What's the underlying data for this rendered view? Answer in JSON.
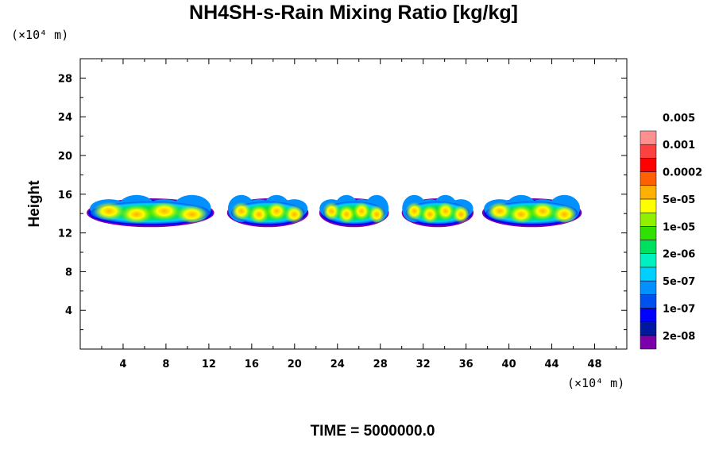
{
  "chart_data": {
    "type": "heatmap",
    "title": "NH4SH-s-Rain Mixing Ratio [kg/kg]",
    "ylabel": "Height",
    "y_unit": "(×10⁴ m)",
    "x_unit": "(×10⁴ m)",
    "time_label": "TIME = 5000000.0",
    "xlim": [
      0,
      51
    ],
    "ylim": [
      0,
      30
    ],
    "x_ticks": [
      4,
      8,
      12,
      16,
      20,
      24,
      28,
      32,
      36,
      40,
      44,
      48
    ],
    "y_ticks": [
      4,
      8,
      12,
      16,
      20,
      24,
      28
    ],
    "grid": false,
    "legend_placement": "right",
    "colorbar": {
      "colors": [
        "#7a00aa",
        "#0018a0",
        "#0000ff",
        "#0050f0",
        "#0090ff",
        "#00d0ff",
        "#00f0c0",
        "#00e060",
        "#30e000",
        "#90f000",
        "#ffff00",
        "#ffb000",
        "#ff6000",
        "#ff0000",
        "#ff4040",
        "#ff9090"
      ],
      "labels": [
        "2e-08",
        "1e-07",
        "5e-07",
        "2e-06",
        "1e-05",
        "5e-05",
        "0.0002",
        "0.001",
        "0.005"
      ]
    },
    "cloud_band": {
      "height_range": [
        12.5,
        16
      ],
      "segments": [
        {
          "x_range": [
            0.6,
            12.5
          ]
        },
        {
          "x_range": [
            13.7,
            21.3
          ]
        },
        {
          "x_range": [
            22.3,
            28.8
          ]
        },
        {
          "x_range": [
            30.0,
            36.7
          ]
        },
        {
          "x_range": [
            37.5,
            46.8
          ]
        }
      ]
    }
  }
}
